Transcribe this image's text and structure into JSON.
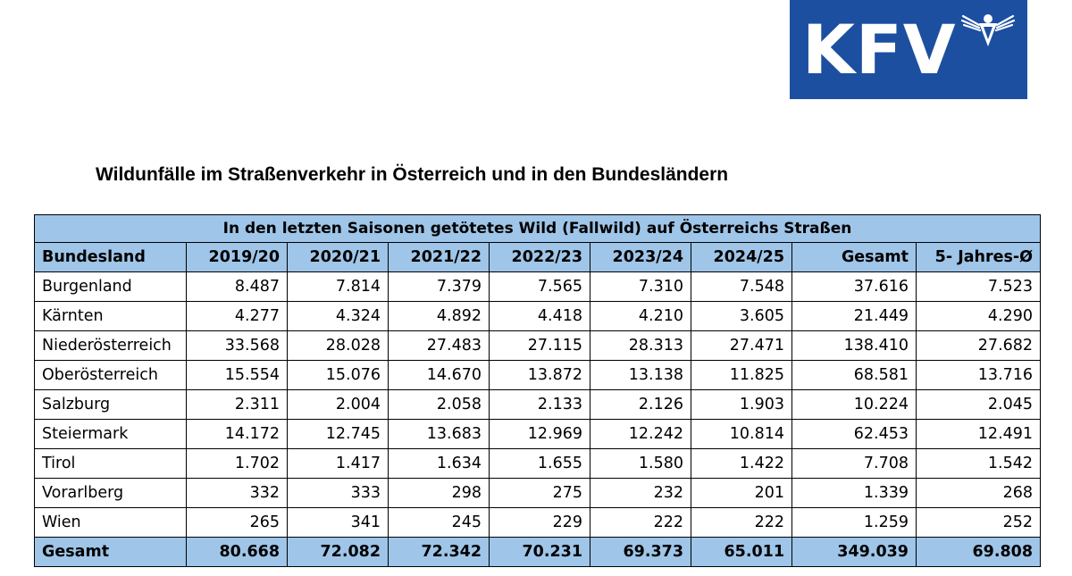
{
  "logo": {
    "text": "KFV",
    "bg": "#1d4fa0",
    "icon": "eagle-icon"
  },
  "title": "Wildunfälle im Straßenverkehr in Österreich und in den Bundesländern",
  "table": {
    "caption": "In den letzten Saisonen getötetes Wild (Fallwild) auf Österreichs Straßen",
    "header_color": "#9fc5e8",
    "headers": [
      "Bundesland",
      "2019/20",
      "2020/21",
      "2021/22",
      "2022/23",
      "2023/24",
      "2024/25",
      "Gesamt",
      "5- Jahres-Ø"
    ],
    "rows": [
      [
        "Burgenland",
        "8.487",
        "7.814",
        "7.379",
        "7.565",
        "7.310",
        "7.548",
        "37.616",
        "7.523"
      ],
      [
        "Kärnten",
        "4.277",
        "4.324",
        "4.892",
        "4.418",
        "4.210",
        "3.605",
        "21.449",
        "4.290"
      ],
      [
        "Niederösterreich",
        "33.568",
        "28.028",
        "27.483",
        "27.115",
        "28.313",
        "27.471",
        "138.410",
        "27.682"
      ],
      [
        "Oberösterreich",
        "15.554",
        "15.076",
        "14.670",
        "13.872",
        "13.138",
        "11.825",
        "68.581",
        "13.716"
      ],
      [
        "Salzburg",
        "2.311",
        "2.004",
        "2.058",
        "2.133",
        "2.126",
        "1.903",
        "10.224",
        "2.045"
      ],
      [
        "Steiermark",
        "14.172",
        "12.745",
        "13.683",
        "12.969",
        "12.242",
        "10.814",
        "62.453",
        "12.491"
      ],
      [
        "Tirol",
        "1.702",
        "1.417",
        "1.634",
        "1.655",
        "1.580",
        "1.422",
        "7.708",
        "1.542"
      ],
      [
        "Vorarlberg",
        "332",
        "333",
        "298",
        "275",
        "232",
        "201",
        "1.339",
        "268"
      ],
      [
        "Wien",
        "265",
        "341",
        "245",
        "229",
        "222",
        "222",
        "1.259",
        "252"
      ]
    ],
    "total": [
      "Gesamt",
      "80.668",
      "72.082",
      "72.342",
      "70.231",
      "69.373",
      "65.011",
      "349.039",
      "69.808"
    ]
  }
}
